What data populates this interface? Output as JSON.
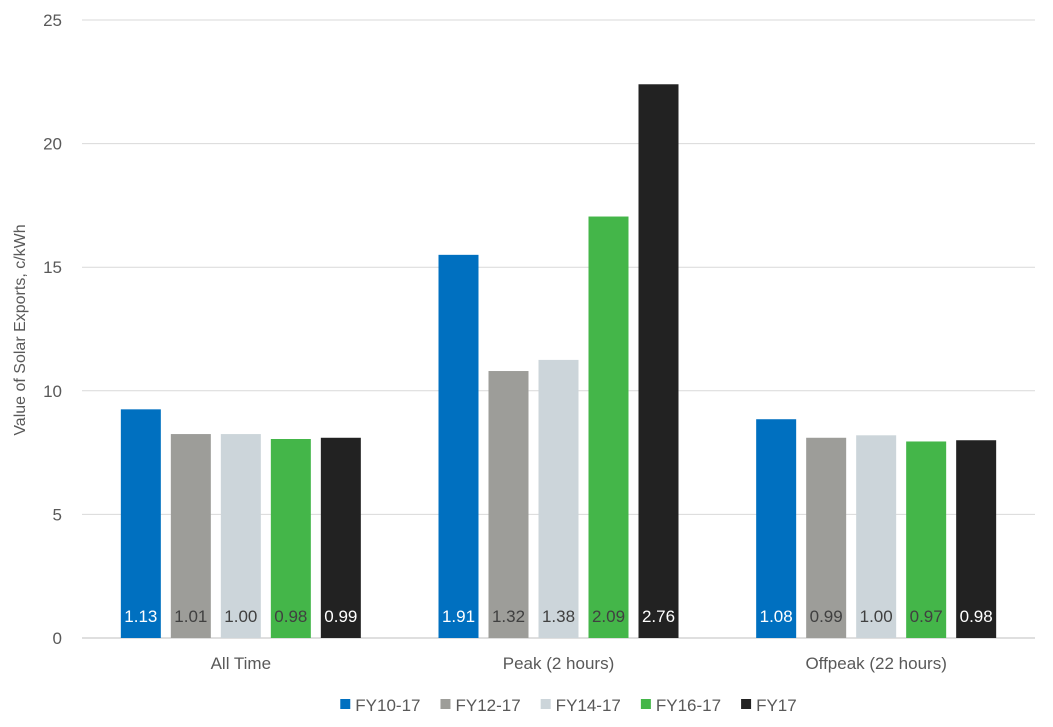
{
  "chart_data": {
    "type": "bar",
    "categories": [
      "All Time",
      "Peak (2 hours)",
      "Offpeak (22 hours)"
    ],
    "ylabel": "Value of Solar Exports, c/kWh",
    "ylim": [
      0,
      25
    ],
    "yticks": [
      "0",
      "5",
      "10",
      "15",
      "20",
      "25"
    ],
    "grid": true,
    "legend_position": "bottom",
    "series": [
      {
        "name": "FY10-17",
        "color": "#0070c0",
        "label_color": "#ffffff",
        "values": [
          9.25,
          15.5,
          8.85
        ],
        "labels": [
          "1.13",
          "1.91",
          "1.08"
        ]
      },
      {
        "name": "FY12-17",
        "color": "#9d9d99",
        "label_color": "#404040",
        "values": [
          8.25,
          10.8,
          8.1
        ],
        "labels": [
          "1.01",
          "1.32",
          "0.99"
        ]
      },
      {
        "name": "FY14-17",
        "color": "#ccd5da",
        "label_color": "#404040",
        "values": [
          8.25,
          11.25,
          8.2
        ],
        "labels": [
          "1.00",
          "1.38",
          "1.00"
        ]
      },
      {
        "name": "FY16-17",
        "color": "#44b649",
        "label_color": "#404040",
        "values": [
          8.05,
          17.05,
          7.95
        ],
        "labels": [
          "0.98",
          "2.09",
          "0.97"
        ]
      },
      {
        "name": "FY17",
        "color": "#222222",
        "label_color": "#ffffff",
        "values": [
          8.1,
          22.4,
          8.0
        ],
        "labels": [
          "0.99",
          "2.76",
          "0.98"
        ]
      }
    ]
  }
}
